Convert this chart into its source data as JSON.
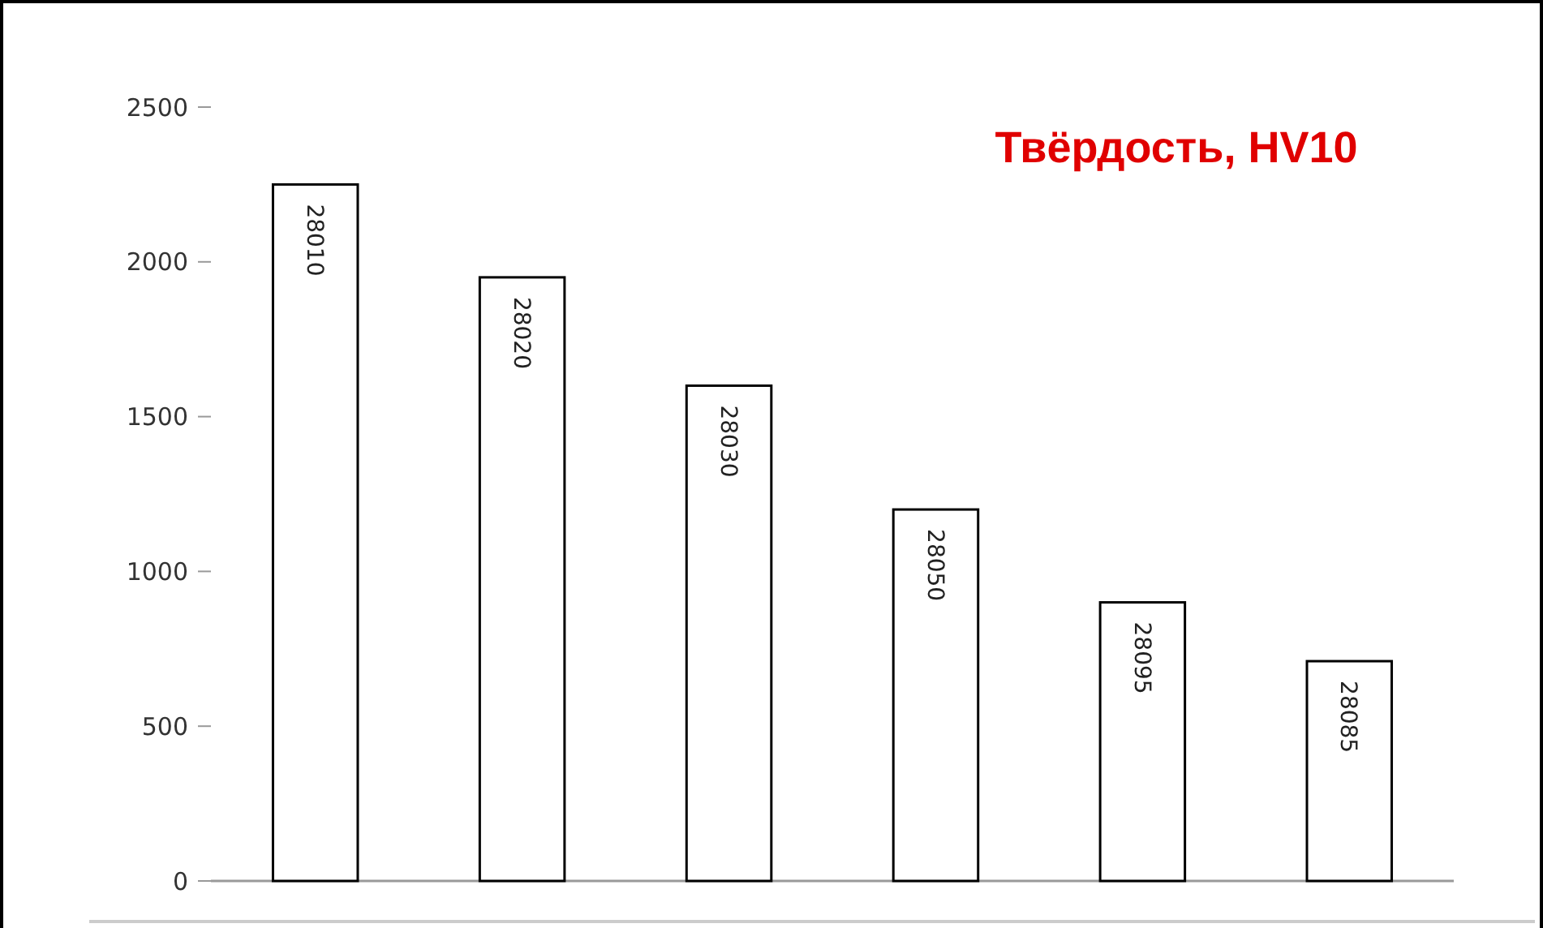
{
  "chart_data": {
    "type": "bar",
    "title": "Твёрдость, HV10",
    "categories": [
      "28010",
      "28020",
      "28030",
      "28050",
      "28095",
      "28085"
    ],
    "values": [
      2250,
      1950,
      1600,
      1200,
      900,
      710
    ],
    "color": "#ffffff",
    "ylim": [
      0,
      2500
    ],
    "yticks": [
      0,
      500,
      1000,
      1500,
      2000,
      2500
    ],
    "grid": false
  }
}
